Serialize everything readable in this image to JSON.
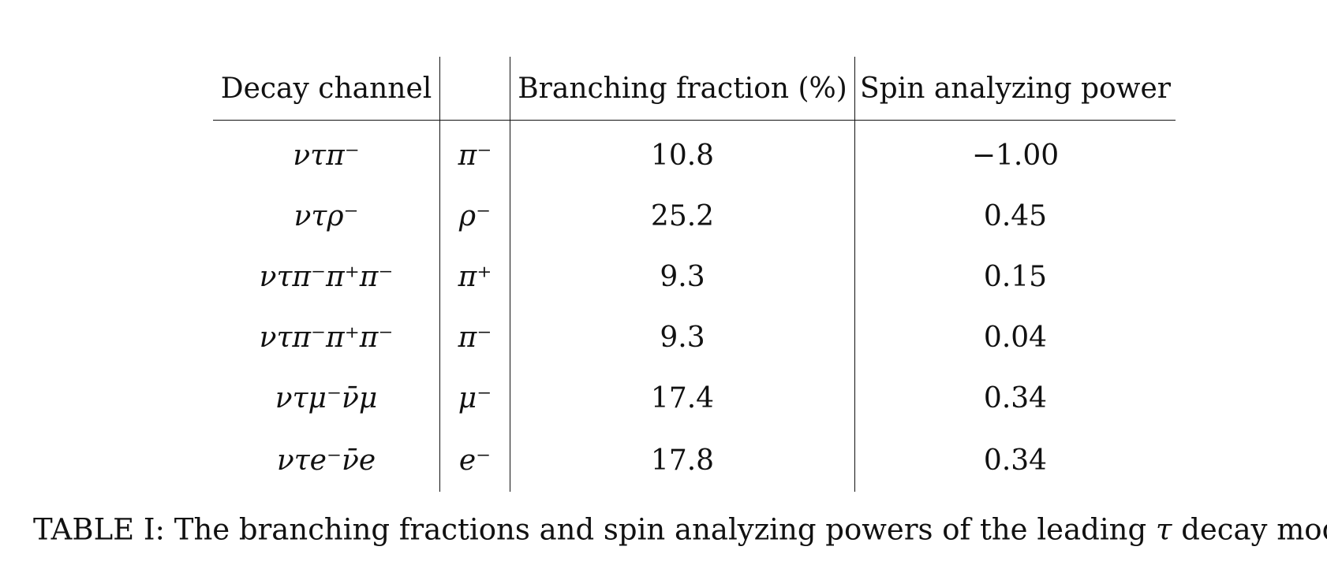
{
  "table": {
    "headers": [
      "Decay channel",
      "",
      "Branching fraction (%)",
      "Spin analyzing power"
    ],
    "rows": [
      {
        "channel": "ντπ⁻",
        "particle": "π⁻",
        "branching_fraction": "10.8",
        "spin_power": "−1.00"
      },
      {
        "channel": "ντρ⁻",
        "particle": "ρ⁻",
        "branching_fraction": "25.2",
        "spin_power": "0.45"
      },
      {
        "channel": "ντπ⁻π⁺π⁻",
        "particle": "π⁺",
        "branching_fraction": "9.3",
        "spin_power": "0.15"
      },
      {
        "channel": "ντπ⁻π⁺π⁻",
        "particle": "π⁻",
        "branching_fraction": "9.3",
        "spin_power": "0.04"
      },
      {
        "channel": "ντμ⁻ν̄μ",
        "particle": "μ⁻",
        "branching_fraction": "17.4",
        "spin_power": "0.34"
      },
      {
        "channel": "ντe⁻ν̄e",
        "particle": "e⁻",
        "branching_fraction": "17.8",
        "spin_power": "0.34"
      }
    ]
  },
  "caption": {
    "label": "TABLE I:",
    "text_before": "The branching fractions and spin analyzing powers of the leading",
    "symbol": "τ",
    "text_after": "decay modes."
  }
}
